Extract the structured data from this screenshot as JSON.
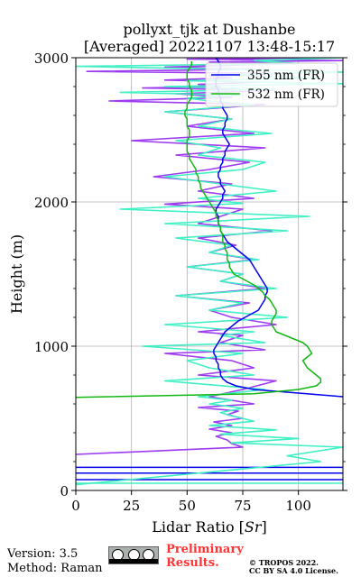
{
  "chart_data": {
    "type": "line",
    "title_line1": "pollyxt_tjk at Dushanbe",
    "title_line2": "[Averaged] 20221107 13:48-15:17",
    "xlabel_text": "Lidar Ratio [",
    "xlabel_italic": "Sr",
    "xlabel_close": "]",
    "ylabel": "Height (m)",
    "xlim": [
      0,
      120
    ],
    "ylim": [
      0,
      3000
    ],
    "xticks": [
      0,
      25,
      50,
      75,
      100
    ],
    "yticks": [
      0,
      1000,
      2000,
      3000
    ],
    "grid": true,
    "legend_position": "top-right",
    "series": [
      {
        "name": "355 nm (FR)",
        "color": "#0000ee",
        "x": [
          120,
          80,
          72,
          68,
          66,
          65,
          65,
          64,
          64,
          63,
          63,
          62,
          62,
          63,
          64,
          65,
          66,
          67,
          69,
          71,
          73,
          76,
          79,
          82,
          83,
          84,
          85,
          85,
          86,
          86,
          85,
          84,
          83,
          82,
          81,
          80,
          79,
          78,
          76,
          74,
          72,
          70,
          68,
          67,
          66,
          65,
          65,
          64,
          64,
          64,
          63,
          63,
          64,
          65,
          66,
          66,
          67,
          66,
          65,
          65,
          64,
          64,
          65,
          65,
          66,
          66,
          67,
          67,
          68,
          69,
          68,
          67,
          66,
          66,
          67,
          67,
          68,
          68,
          67,
          66,
          66,
          65,
          65,
          64,
          64,
          63,
          63,
          63,
          64,
          64,
          65,
          65,
          64,
          63,
          62,
          62,
          63,
          65,
          67,
          68
        ],
        "y": [
          650,
          700,
          725,
          750,
          775,
          800,
          825,
          850,
          875,
          900,
          925,
          950,
          975,
          1000,
          1025,
          1050,
          1075,
          1100,
          1125,
          1150,
          1175,
          1200,
          1225,
          1250,
          1275,
          1300,
          1325,
          1350,
          1375,
          1400,
          1425,
          1450,
          1475,
          1500,
          1525,
          1550,
          1575,
          1600,
          1625,
          1650,
          1675,
          1700,
          1725,
          1750,
          1775,
          1800,
          1825,
          1850,
          1875,
          1900,
          1925,
          1950,
          1975,
          2000,
          2025,
          2050,
          2075,
          2100,
          2125,
          2150,
          2175,
          2200,
          2225,
          2250,
          2275,
          2300,
          2325,
          2350,
          2375,
          2400,
          2425,
          2450,
          2475,
          2500,
          2525,
          2550,
          2575,
          2600,
          2625,
          2650,
          2675,
          2700,
          2725,
          2750,
          2775,
          2800,
          2825,
          2850,
          2875,
          2900,
          2925,
          2950,
          2975,
          3000,
          3010,
          3020,
          3030,
          3040,
          3050,
          3060
        ]
      },
      {
        "name": "532 nm (FR)",
        "color": "#11b711",
        "x": [
          0,
          80,
          100,
          108,
          110,
          110,
          108,
          106,
          104,
          103,
          102,
          104,
          106,
          105,
          104,
          102,
          98,
          94,
          90,
          89,
          88,
          88,
          89,
          90,
          90,
          89,
          88,
          87,
          85,
          84,
          82,
          80,
          77,
          74,
          71,
          70,
          69,
          69,
          68,
          68,
          68,
          67,
          67,
          66,
          66,
          66,
          65,
          65,
          64,
          64,
          63,
          63,
          62,
          61,
          60,
          59,
          58,
          57,
          56,
          56,
          55,
          55,
          54,
          54,
          53,
          52,
          51,
          51,
          50,
          50,
          50,
          50,
          51,
          51,
          51,
          50,
          50,
          50,
          49,
          49,
          50,
          50,
          51,
          52,
          52,
          52,
          51,
          51,
          50,
          50,
          50,
          51,
          52,
          52
        ],
        "y": [
          645,
          670,
          700,
          725,
          750,
          775,
          800,
          825,
          850,
          875,
          900,
          925,
          950,
          975,
          1000,
          1025,
          1050,
          1075,
          1100,
          1125,
          1150,
          1175,
          1200,
          1225,
          1250,
          1275,
          1300,
          1325,
          1350,
          1375,
          1400,
          1425,
          1450,
          1475,
          1500,
          1525,
          1550,
          1575,
          1600,
          1625,
          1650,
          1675,
          1700,
          1725,
          1750,
          1775,
          1800,
          1825,
          1850,
          1875,
          1900,
          1925,
          1950,
          1975,
          2000,
          2025,
          2050,
          2075,
          2100,
          2125,
          2150,
          2175,
          2200,
          2225,
          2250,
          2275,
          2300,
          2325,
          2350,
          2375,
          2400,
          2425,
          2450,
          2475,
          2500,
          2525,
          2550,
          2575,
          2600,
          2625,
          2650,
          2675,
          2700,
          2725,
          2750,
          2775,
          2800,
          2825,
          2850,
          2875,
          2900,
          2925,
          2950,
          2975
        ]
      }
    ],
    "noisy_series": [
      {
        "color": "#9d3bf0",
        "x": [
          0,
          75,
          70,
          68,
          63,
          70,
          60,
          70,
          62,
          75,
          68,
          73,
          55,
          80,
          70,
          60,
          75,
          90,
          55,
          80,
          70,
          40,
          85,
          65,
          75,
          55,
          90,
          70,
          60,
          78,
          45,
          85,
          65,
          75,
          50,
          80,
          60,
          72,
          55,
          88,
          55,
          65,
          75,
          40,
          80,
          55,
          70,
          35,
          60,
          78,
          45,
          85,
          25,
          80,
          50,
          70,
          40,
          85,
          15,
          70,
          45,
          90,
          30,
          65,
          55,
          82,
          40,
          70,
          60,
          95,
          5,
          80,
          40,
          75,
          100,
          60,
          120,
          50,
          110,
          70,
          90,
          60,
          115,
          50,
          95,
          75,
          65,
          120
        ],
        "y": [
          250,
          300,
          325,
          350,
          375,
          400,
          425,
          450,
          475,
          500,
          525,
          550,
          575,
          600,
          625,
          650,
          700,
          760,
          800,
          850,
          900,
          950,
          975,
          1025,
          1075,
          1100,
          1150,
          1200,
          1250,
          1300,
          1350,
          1400,
          1450,
          1500,
          1550,
          1600,
          1650,
          1700,
          1750,
          1800,
          1850,
          1900,
          1950,
          1985,
          2025,
          2075,
          2125,
          2175,
          2225,
          2275,
          2325,
          2375,
          2425,
          2475,
          2525,
          2575,
          2625,
          2675,
          2700,
          2725,
          2750,
          2775,
          2790,
          2800,
          2815,
          2830,
          2845,
          2860,
          2875,
          2890,
          2905,
          2920,
          2935,
          2950,
          2960,
          2970,
          2980,
          2990,
          3000,
          3010,
          3020,
          3030,
          3040,
          3050,
          3060,
          3070,
          3080,
          3090
        ]
      },
      {
        "color": "#3ff0c4",
        "x": [
          0,
          110,
          95,
          120,
          70,
          100,
          65,
          90,
          60,
          80,
          72,
          65,
          75,
          60,
          70,
          55,
          85,
          40,
          80,
          60,
          50,
          75,
          30,
          85,
          65,
          80,
          40,
          95,
          60,
          75,
          45,
          90,
          65,
          75,
          50,
          82,
          60,
          70,
          45,
          95,
          40,
          105,
          20,
          75,
          55,
          90,
          65,
          40,
          75,
          85,
          55,
          65,
          45,
          88,
          55,
          70,
          40,
          80,
          60,
          50,
          75,
          20,
          90,
          40,
          120,
          50,
          110,
          60,
          120,
          70,
          0,
          100,
          80,
          120,
          60,
          110,
          40,
          90
        ],
        "y": [
          40,
          200,
          240,
          300,
          330,
          360,
          390,
          420,
          450,
          480,
          510,
          540,
          570,
          600,
          625,
          650,
          700,
          760,
          800,
          850,
          900,
          950,
          1000,
          1025,
          1075,
          1100,
          1150,
          1200,
          1250,
          1300,
          1350,
          1400,
          1450,
          1500,
          1550,
          1600,
          1650,
          1700,
          1750,
          1800,
          1850,
          1900,
          1950,
          1990,
          2025,
          2075,
          2125,
          2175,
          2225,
          2275,
          2325,
          2375,
          2425,
          2475,
          2525,
          2575,
          2625,
          2675,
          2700,
          2720,
          2740,
          2760,
          2780,
          2800,
          2820,
          2840,
          2860,
          2880,
          2900,
          2920,
          2940,
          2960,
          2980,
          3000,
          3020,
          3040,
          3060,
          3080
        ]
      }
    ],
    "near_ground_lines": [
      {
        "y": 50,
        "color": "#3ff0c4"
      },
      {
        "y": 75,
        "color": "#0000ee"
      },
      {
        "y": 120,
        "color": "#0000ee"
      },
      {
        "y": 160,
        "color": "#0000ee"
      }
    ]
  },
  "footer": {
    "version": "Version: 3.5",
    "method": "Method: Raman",
    "preliminary_line1": "Preliminary",
    "preliminary_line2": "Results.",
    "copyright_line1": "© TROPOS 2022.",
    "copyright_line2": "CC BY SA 4.0 License."
  }
}
